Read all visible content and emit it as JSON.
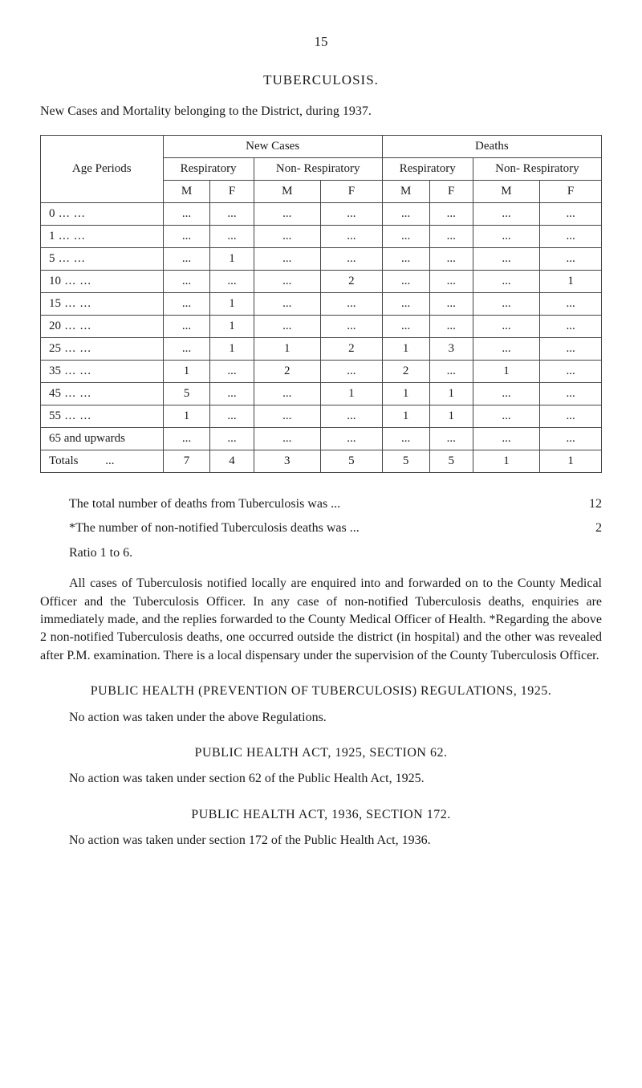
{
  "page_number": "15",
  "title": "TUBERCULOSIS.",
  "subtitle": "New Cases and Mortality belonging to the District, during 1937.",
  "table": {
    "col_age": "Age Periods",
    "group_new": "New Cases",
    "group_deaths": "Deaths",
    "sub_resp": "Respiratory",
    "sub_nonresp": "Non-Respiratory",
    "sub_nonresp2": "Non- Respiratory",
    "mf_m": "M",
    "mf_f": "F",
    "rows": [
      {
        "age": "0",
        "v": [
          "...",
          "...",
          "...",
          "...",
          "...",
          "...",
          "...",
          "..."
        ]
      },
      {
        "age": "1",
        "v": [
          "...",
          "...",
          "...",
          "...",
          "...",
          "...",
          "...",
          "..."
        ]
      },
      {
        "age": "5",
        "v": [
          "...",
          "1",
          "...",
          "...",
          "...",
          "...",
          "...",
          "..."
        ]
      },
      {
        "age": "10",
        "v": [
          "...",
          "...",
          "...",
          "2",
          "...",
          "...",
          "...",
          "1"
        ]
      },
      {
        "age": "15",
        "v": [
          "...",
          "1",
          "...",
          "...",
          "...",
          "...",
          "...",
          "..."
        ]
      },
      {
        "age": "20",
        "v": [
          "...",
          "1",
          "...",
          "...",
          "...",
          "...",
          "...",
          "..."
        ]
      },
      {
        "age": "25",
        "v": [
          "...",
          "1",
          "1",
          "2",
          "1",
          "3",
          "...",
          "..."
        ]
      },
      {
        "age": "35",
        "v": [
          "1",
          "...",
          "2",
          "...",
          "2",
          "...",
          "1",
          "..."
        ]
      },
      {
        "age": "45",
        "v": [
          "5",
          "...",
          "...",
          "1",
          "1",
          "1",
          "...",
          "..."
        ]
      },
      {
        "age": "55",
        "v": [
          "1",
          "...",
          "...",
          "...",
          "1",
          "1",
          "...",
          "..."
        ]
      },
      {
        "age": "65 and upwards",
        "v": [
          "...",
          "...",
          "...",
          "...",
          "...",
          "...",
          "...",
          "..."
        ]
      }
    ],
    "totals_label": "Totals",
    "totals": [
      "7",
      "4",
      "3",
      "5",
      "5",
      "5",
      "1",
      "1"
    ]
  },
  "stat_total_label": "The total number of deaths from Tuberculosis was ...",
  "stat_total_val": "12",
  "stat_nonnot_label": "*The number of non-notified Tuberculosis deaths was ...",
  "stat_nonnot_val": "2",
  "ratio": "Ratio 1 to 6.",
  "para1": "All cases of Tuberculosis notified locally are enquired into and forwarded on to the County Medical Officer and the Tuberculosis Officer. In any case of non-notified Tuberculosis deaths, enquiries are immediately made, and the replies forwarded to the County Medical Officer of Health. *Regarding the above 2 non-notified Tuberculosis deaths, one occurred outside the district (in hospital) and the other was revealed after P.M. examination. There is a local dispensary under the supervision of the County Tuberculosis Officer.",
  "sec1_head": "PUBLIC HEALTH (PREVENTION OF TUBERCULOSIS) REGULATIONS, 1925.",
  "sec1_body": "No action was taken under the above Regulations.",
  "sec2_head": "PUBLIC HEALTH ACT, 1925, SECTION 62.",
  "sec2_body": "No action was taken under section 62 of the Public Health Act, 1925.",
  "sec3_head": "PUBLIC HEALTH ACT, 1936, SECTION 172.",
  "sec3_body": "No action was taken under section 172 of the Public Health Act, 1936."
}
